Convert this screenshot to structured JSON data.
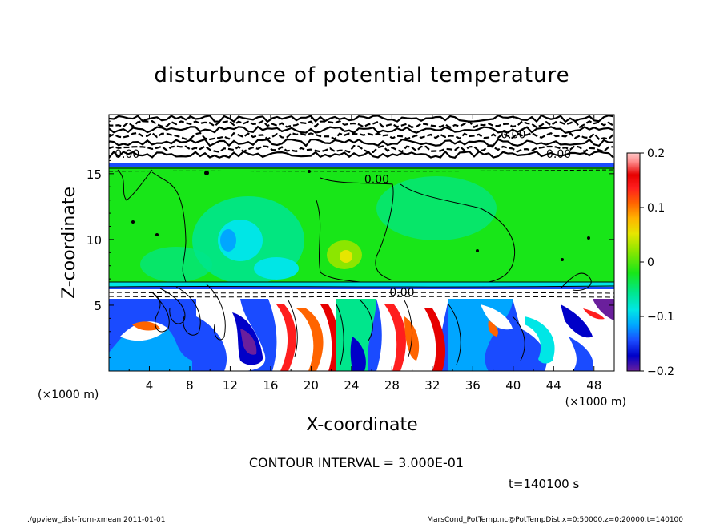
{
  "chart_data": {
    "type": "heatmap",
    "title": "disturbunce of potential temperature",
    "xlabel": "X-coordinate",
    "ylabel": "Z-coordinate",
    "x_unit": "(×1000 m)",
    "z_unit": "(×1000 m)",
    "xlim": [
      0,
      50
    ],
    "ylim": [
      0,
      19.5
    ],
    "x_ticks": [
      4,
      8,
      12,
      16,
      20,
      24,
      28,
      32,
      36,
      40,
      44,
      48
    ],
    "y_ticks": [
      5,
      10,
      15
    ],
    "colorbar": {
      "range": [
        -0.2,
        0.2
      ],
      "ticks": [
        {
          "value": 0.2,
          "label": "0.2"
        },
        {
          "value": 0.1,
          "label": "0.1"
        },
        {
          "value": 0,
          "label": "0"
        },
        {
          "value": -0.1,
          "label": "−0.1"
        },
        {
          "value": -0.2,
          "label": "−0.2"
        }
      ],
      "colors": [
        "#6a1f9c",
        "#0000c8",
        "#1a4bff",
        "#00a6ff",
        "#00e6e6",
        "#00e68c",
        "#18e618",
        "#8ce600",
        "#e6e600",
        "#ffb400",
        "#ff6400",
        "#ff1e1e",
        "#e60000",
        "#ff8c8c",
        "#ffc8c8"
      ]
    },
    "contour_interval_text": "CONTOUR INTERVAL = 3.000E-01",
    "contour_labels": [
      {
        "x": 1.8,
        "z": 16.2,
        "label": "0.00"
      },
      {
        "x": 26.5,
        "z": 14.3,
        "label": "0.00"
      },
      {
        "x": 44.5,
        "z": 16.2,
        "label": "0.00"
      },
      {
        "x": 40.0,
        "z": 17.7,
        "label": "0.00"
      },
      {
        "x": 29.0,
        "z": 5.7,
        "label": "0.00"
      }
    ],
    "regions": [
      {
        "name": "upper layer (z > 16.3)",
        "value_description": "noisy, mostly white with dense contours"
      },
      {
        "name": "middle layer (6.5 < z < 16.3)",
        "value_description": "near 0 (green) with negative patch around x=14–18"
      },
      {
        "name": "lower layer (z < 6.5)",
        "value_description": "strong positive/negative convective plumes"
      }
    ]
  },
  "time_label": "t=140100 s",
  "footer_left": "./gpview_dist-from-xmean  2011-01-01",
  "footer_right": "MarsCond_PotTemp.nc@PotTempDist,x=0:50000,z=0:20000,t=140100"
}
